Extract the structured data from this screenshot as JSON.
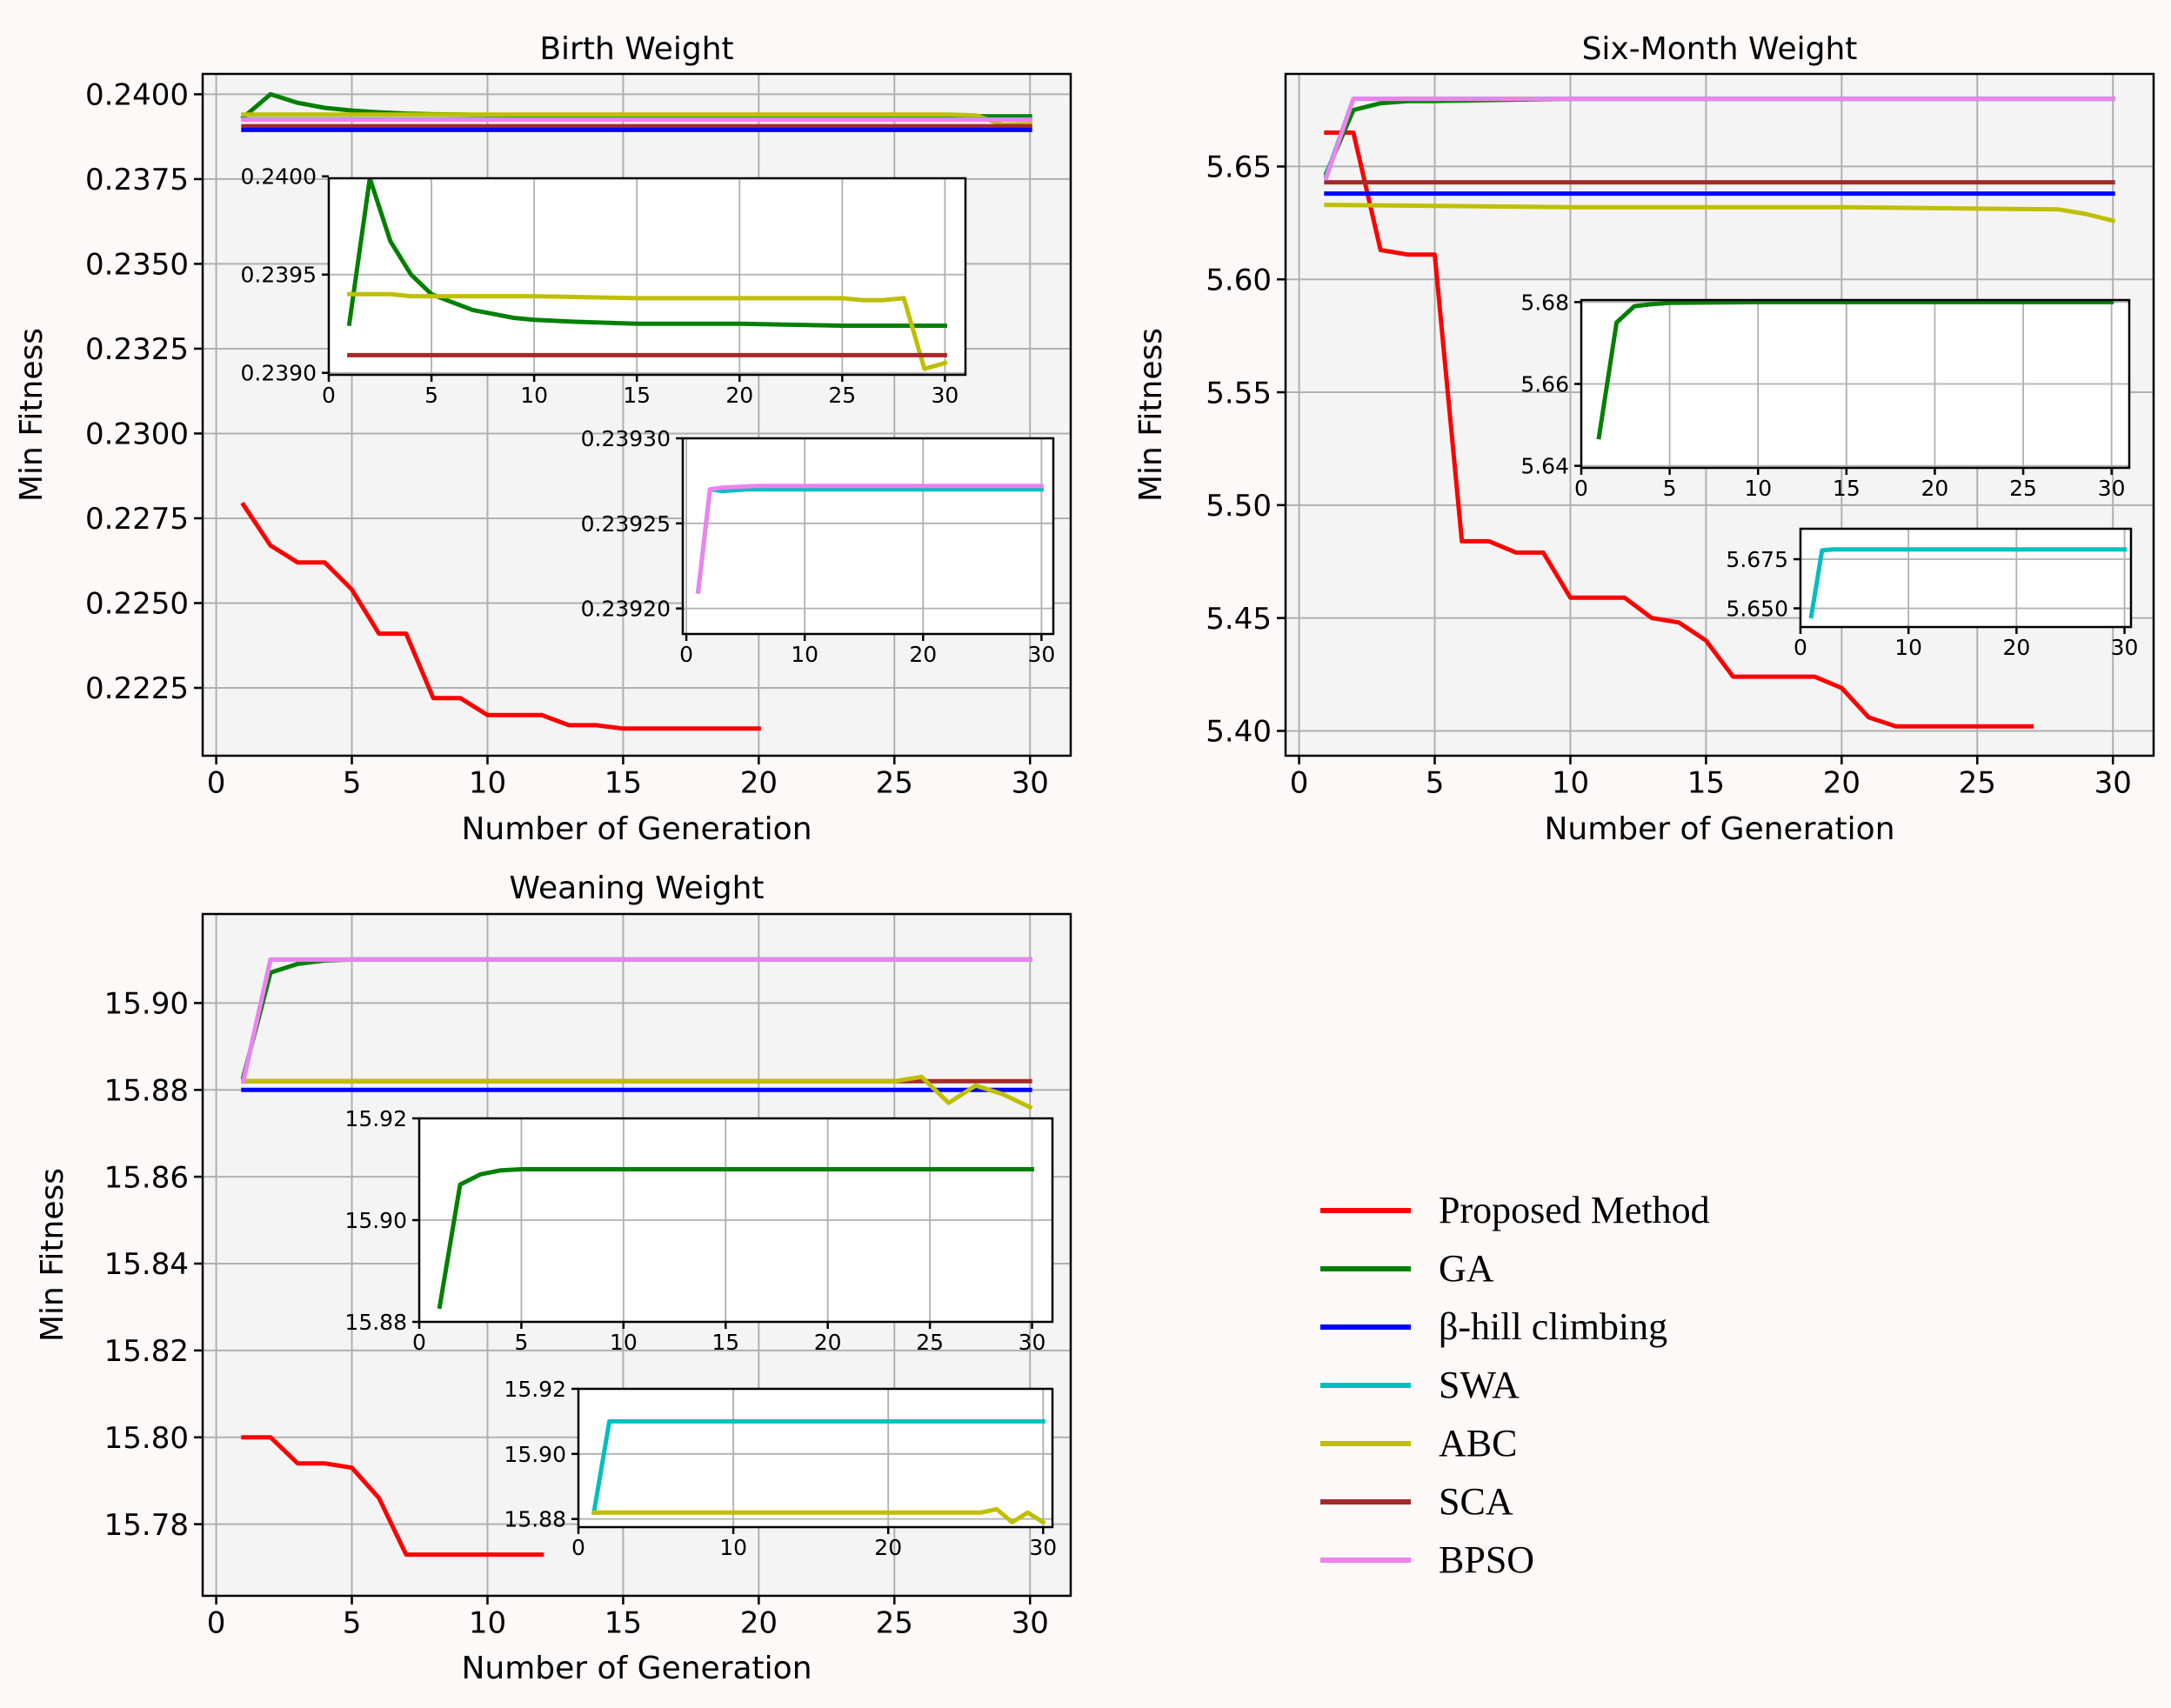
{
  "chart_data": [
    {
      "id": "birth",
      "type": "line",
      "title": "Birth Weight",
      "xlabel": "Number of Generation",
      "ylabel": "Min Fitness",
      "xlim": [
        -0.5,
        31.5
      ],
      "ylim": [
        0.2205,
        0.2406
      ],
      "xticks": [
        0,
        5,
        10,
        15,
        20,
        25,
        30
      ],
      "xtick_labels": [
        "0",
        "5",
        "10",
        "15",
        "20",
        "25",
        "30"
      ],
      "yticks": [
        0.2225,
        0.225,
        0.2275,
        0.23,
        0.2325,
        0.235,
        0.2375,
        0.24
      ],
      "ytick_labels": [
        "0.2225",
        "0.2250",
        "0.2275",
        "0.2300",
        "0.2325",
        "0.2350",
        "0.2375",
        "0.2400"
      ],
      "grid": true,
      "series": [
        {
          "name": "Proposed Method",
          "color": "#ff0000",
          "x": [
            1,
            2,
            3,
            4,
            5,
            6,
            7,
            8,
            9,
            10,
            11,
            12,
            13,
            14,
            15,
            16,
            17,
            18,
            19,
            20
          ],
          "y": [
            0.2279,
            0.2267,
            0.2262,
            0.2262,
            0.2254,
            0.2241,
            0.2241,
            0.2222,
            0.2222,
            0.2217,
            0.2217,
            0.2217,
            0.2214,
            0.2214,
            0.2213,
            0.2213,
            0.2213,
            0.2213,
            0.2213,
            0.2213
          ]
        },
        {
          "name": "GA",
          "color": "#008000",
          "x": [
            1,
            2,
            3,
            4,
            5,
            6,
            7,
            8,
            9,
            10,
            12,
            15,
            20,
            25,
            30
          ],
          "y": [
            0.23932,
            0.24,
            0.23975,
            0.2396,
            0.23952,
            0.23947,
            0.23943,
            0.23941,
            0.2394,
            0.23939,
            0.23938,
            0.23937,
            0.23936,
            0.23935,
            0.23935
          ]
        },
        {
          "name": "ABC",
          "color": "#bfbf00",
          "x": [
            1,
            27,
            28,
            29,
            30
          ],
          "y": [
            0.2394,
            0.2394,
            0.23938,
            0.2391,
            0.23912
          ]
        },
        {
          "name": "SWA",
          "color": "#00bfbf",
          "x": [
            1,
            30
          ],
          "y": [
            0.23926,
            0.23926
          ]
        },
        {
          "name": "BPSO",
          "color": "#ee82ee",
          "x": [
            1,
            30
          ],
          "y": [
            0.23925,
            0.23925
          ]
        },
        {
          "name": "SCA",
          "color": "#a52a2a",
          "x": [
            1,
            30
          ],
          "y": [
            0.23906,
            0.23906
          ]
        },
        {
          "name": "β-hill climbing",
          "color": "#0000ff",
          "x": [
            1,
            30
          ],
          "y": [
            0.23895,
            0.23895
          ]
        }
      ],
      "insets": [
        {
          "xlim": [
            0,
            31
          ],
          "ylim": [
            0.23899,
            0.23999
          ],
          "xticks": [
            0,
            5,
            10,
            15,
            20,
            25,
            30
          ],
          "xtick_labels": [
            "0",
            "5",
            "10",
            "15",
            "20",
            "25",
            "30"
          ],
          "yticks": [
            0.239,
            0.2395,
            0.24
          ],
          "ytick_labels": [
            "0.2390",
            "0.2395",
            "0.2400"
          ],
          "series": [
            {
              "name": "GA",
              "color": "#008000",
              "x": [
                1,
                2,
                3,
                4,
                5,
                6,
                7,
                8,
                9,
                10,
                12,
                15,
                20,
                25,
                30
              ],
              "y": [
                0.23925,
                0.23999,
                0.23967,
                0.2395,
                0.2394,
                0.23936,
                0.23932,
                0.2393,
                0.23928,
                0.23927,
                0.23926,
                0.23925,
                0.23925,
                0.23924,
                0.23924
              ]
            },
            {
              "name": "ABC",
              "color": "#bfbf00",
              "x": [
                1,
                2,
                3,
                4,
                5,
                10,
                15,
                20,
                25,
                26,
                27,
                28,
                29,
                30
              ],
              "y": [
                0.2394,
                0.2394,
                0.2394,
                0.23939,
                0.23939,
                0.23939,
                0.23938,
                0.23938,
                0.23938,
                0.23937,
                0.23937,
                0.23938,
                0.23902,
                0.23905
              ]
            },
            {
              "name": "SCA",
              "color": "#a52a2a",
              "x": [
                1,
                30
              ],
              "y": [
                0.23909,
                0.23909
              ]
            }
          ]
        },
        {
          "xlim": [
            -0.3,
            31
          ],
          "ylim": [
            0.239185,
            0.2393
          ],
          "xticks": [
            0,
            10,
            20,
            30
          ],
          "xtick_labels": [
            "0",
            "10",
            "20",
            "30"
          ],
          "yticks": [
            0.2392,
            0.23925,
            0.2393
          ],
          "ytick_labels": [
            "0.23920",
            "0.23925",
            "0.23930"
          ],
          "series": [
            {
              "name": "SWA",
              "color": "#00bfbf",
              "x": [
                1,
                2,
                3,
                5,
                10,
                20,
                30
              ],
              "y": [
                0.23921,
                0.23927,
                0.239269,
                0.23927,
                0.23927,
                0.23927,
                0.23927
              ]
            },
            {
              "name": "BPSO",
              "color": "#ee82ee",
              "x": [
                1,
                2,
                3,
                6,
                10,
                20,
                30
              ],
              "y": [
                0.23921,
                0.23927,
                0.239271,
                0.239272,
                0.239272,
                0.239272,
                0.239272
              ]
            }
          ]
        }
      ]
    },
    {
      "id": "six",
      "type": "line",
      "title": "Six-Month Weight",
      "xlabel": "Number of Generation",
      "ylabel": "Min Fitness",
      "xlim": [
        -0.5,
        31.5
      ],
      "ylim": [
        5.389,
        5.691
      ],
      "xticks": [
        0,
        5,
        10,
        15,
        20,
        25,
        30
      ],
      "xtick_labels": [
        "0",
        "5",
        "10",
        "15",
        "20",
        "25",
        "30"
      ],
      "yticks": [
        5.4,
        5.45,
        5.5,
        5.55,
        5.6,
        5.65
      ],
      "ytick_labels": [
        "5.40",
        "5.45",
        "5.50",
        "5.55",
        "5.60",
        "5.65"
      ],
      "grid": true,
      "series": [
        {
          "name": "Proposed Method",
          "color": "#ff0000",
          "x": [
            1,
            2,
            3,
            4,
            5,
            6,
            7,
            8,
            9,
            10,
            11,
            12,
            13,
            14,
            15,
            16,
            17,
            18,
            19,
            20,
            21,
            22,
            23,
            24,
            25,
            26,
            27
          ],
          "y": [
            5.665,
            5.665,
            5.613,
            5.611,
            5.611,
            5.484,
            5.484,
            5.479,
            5.479,
            5.459,
            5.459,
            5.459,
            5.45,
            5.448,
            5.44,
            5.424,
            5.424,
            5.424,
            5.424,
            5.419,
            5.406,
            5.402,
            5.402,
            5.402,
            5.402,
            5.402,
            5.402
          ]
        },
        {
          "name": "SCA",
          "color": "#a52a2a",
          "x": [
            1,
            30
          ],
          "y": [
            5.643,
            5.643
          ]
        },
        {
          "name": "β-hill climbing",
          "color": "#0000ff",
          "x": [
            1,
            30
          ],
          "y": [
            5.638,
            5.638
          ]
        },
        {
          "name": "ABC",
          "color": "#bfbf00",
          "x": [
            1,
            10,
            20,
            28,
            29,
            30
          ],
          "y": [
            5.633,
            5.632,
            5.632,
            5.631,
            5.629,
            5.626
          ]
        },
        {
          "name": "GA",
          "color": "#008000",
          "x": [
            1,
            2,
            3,
            4,
            5,
            10,
            30
          ],
          "y": [
            5.647,
            5.675,
            5.678,
            5.679,
            5.679,
            5.68,
            5.68
          ]
        },
        {
          "name": "SWA",
          "color": "#00bfbf",
          "x": [
            1,
            2,
            3,
            30
          ],
          "y": [
            5.646,
            5.68,
            5.68,
            5.68
          ]
        },
        {
          "name": "BPSO",
          "color": "#ee82ee",
          "x": [
            1,
            2,
            3,
            30
          ],
          "y": [
            5.645,
            5.68,
            5.68,
            5.68
          ]
        }
      ],
      "insets": [
        {
          "xlim": [
            0,
            31
          ],
          "ylim": [
            5.6395,
            5.6805
          ],
          "xticks": [
            0,
            5,
            10,
            15,
            20,
            25,
            30
          ],
          "xtick_labels": [
            "0",
            "5",
            "10",
            "15",
            "20",
            "25",
            "30"
          ],
          "yticks": [
            5.64,
            5.66,
            5.68
          ],
          "ytick_labels": [
            "5.64",
            "5.66",
            "5.68"
          ],
          "series": [
            {
              "name": "GA",
              "color": "#008000",
              "x": [
                1,
                2,
                3,
                4,
                5,
                10,
                30
              ],
              "y": [
                5.647,
                5.675,
                5.679,
                5.6795,
                5.6798,
                5.68,
                5.68
              ]
            }
          ]
        },
        {
          "xlim": [
            0,
            30.6
          ],
          "ylim": [
            5.6405,
            5.6905
          ],
          "xticks": [
            0,
            10,
            20,
            30
          ],
          "xtick_labels": [
            "0",
            "10",
            "20",
            "30"
          ],
          "yticks": [
            5.65,
            5.675
          ],
          "ytick_labels": [
            "5.650",
            "5.675"
          ],
          "series": [
            {
              "name": "SWA",
              "color": "#00bfbf",
              "x": [
                1,
                2,
                3,
                30
              ],
              "y": [
                5.646,
                5.6795,
                5.68,
                5.68
              ]
            }
          ]
        }
      ]
    },
    {
      "id": "wean",
      "type": "line",
      "title": "Weaning Weight",
      "xlabel": "Number of Generation",
      "ylabel": "Min Fitness",
      "xlim": [
        -0.5,
        31.5
      ],
      "ylim": [
        15.7635,
        15.9205
      ],
      "xticks": [
        0,
        5,
        10,
        15,
        20,
        25,
        30
      ],
      "xtick_labels": [
        "0",
        "5",
        "10",
        "15",
        "20",
        "25",
        "30"
      ],
      "yticks": [
        15.78,
        15.8,
        15.82,
        15.84,
        15.86,
        15.88,
        15.9
      ],
      "ytick_labels": [
        "15.78",
        "15.80",
        "15.82",
        "15.84",
        "15.86",
        "15.88",
        "15.90"
      ],
      "grid": true,
      "series": [
        {
          "name": "Proposed Method",
          "color": "#ff0000",
          "x": [
            1,
            2,
            3,
            4,
            5,
            6,
            7,
            8,
            9,
            10,
            11,
            12
          ],
          "y": [
            15.8,
            15.8,
            15.794,
            15.794,
            15.793,
            15.786,
            15.773,
            15.773,
            15.773,
            15.773,
            15.773,
            15.773
          ]
        },
        {
          "name": "SCA",
          "color": "#a52a2a",
          "x": [
            1,
            30
          ],
          "y": [
            15.882,
            15.882
          ]
        },
        {
          "name": "β-hill climbing",
          "color": "#0000ff",
          "x": [
            1,
            30
          ],
          "y": [
            15.88,
            15.88
          ]
        },
        {
          "name": "ABC",
          "color": "#bfbf00",
          "x": [
            1,
            25,
            26,
            27,
            28,
            29,
            30
          ],
          "y": [
            15.882,
            15.882,
            15.883,
            15.877,
            15.881,
            15.879,
            15.876
          ]
        },
        {
          "name": "GA",
          "color": "#008000",
          "x": [
            1,
            2,
            3,
            4,
            5,
            10,
            30
          ],
          "y": [
            15.883,
            15.907,
            15.909,
            15.9098,
            15.91,
            15.91,
            15.91
          ]
        },
        {
          "name": "SWA",
          "color": "#00bfbf",
          "x": [
            1,
            2,
            30
          ],
          "y": [
            15.882,
            15.91,
            15.91
          ]
        },
        {
          "name": "BPSO",
          "color": "#ee82ee",
          "x": [
            1,
            2,
            30
          ],
          "y": [
            15.882,
            15.91,
            15.91
          ]
        }
      ],
      "insets": [
        {
          "xlim": [
            0,
            31
          ],
          "ylim": [
            15.88,
            15.92
          ],
          "xticks": [
            0,
            5,
            10,
            15,
            20,
            25,
            30
          ],
          "xtick_labels": [
            "0",
            "5",
            "10",
            "15",
            "20",
            "25",
            "30"
          ],
          "yticks": [
            15.88,
            15.9,
            15.92
          ],
          "ytick_labels": [
            "15.88",
            "15.90",
            "15.92"
          ],
          "series": [
            {
              "name": "GA",
              "color": "#008000",
              "x": [
                1,
                2,
                3,
                4,
                5,
                10,
                30
              ],
              "y": [
                15.883,
                15.907,
                15.909,
                15.9098,
                15.91,
                15.91,
                15.91
              ]
            }
          ]
        },
        {
          "xlim": [
            0,
            30.6
          ],
          "ylim": [
            15.8775,
            15.92
          ],
          "xticks": [
            0,
            10,
            20,
            30
          ],
          "xtick_labels": [
            "0",
            "10",
            "20",
            "30"
          ],
          "yticks": [
            15.88,
            15.9,
            15.92
          ],
          "ytick_labels": [
            "15.88",
            "15.90",
            "15.92"
          ],
          "series": [
            {
              "name": "SWA",
              "color": "#00bfbf",
              "x": [
                1,
                2,
                30
              ],
              "y": [
                15.882,
                15.91,
                15.91
              ]
            },
            {
              "name": "ABC",
              "color": "#bfbf00",
              "x": [
                1,
                26,
                27,
                28,
                29,
                30
              ],
              "y": [
                15.882,
                15.882,
                15.883,
                15.879,
                15.882,
                15.879
              ]
            }
          ]
        }
      ]
    }
  ],
  "legend": {
    "location": "lower-right",
    "items": [
      {
        "label": "Proposed Method",
        "color": "#ff0000"
      },
      {
        "label": "GA",
        "color": "#008000"
      },
      {
        "label": "β-hill climbing",
        "color": "#0000ff"
      },
      {
        "label": "SWA",
        "color": "#00bfbf"
      },
      {
        "label": "ABC",
        "color": "#bfbf00"
      },
      {
        "label": "SCA",
        "color": "#a52a2a"
      },
      {
        "label": "BPSO",
        "color": "#ee82ee"
      }
    ]
  }
}
